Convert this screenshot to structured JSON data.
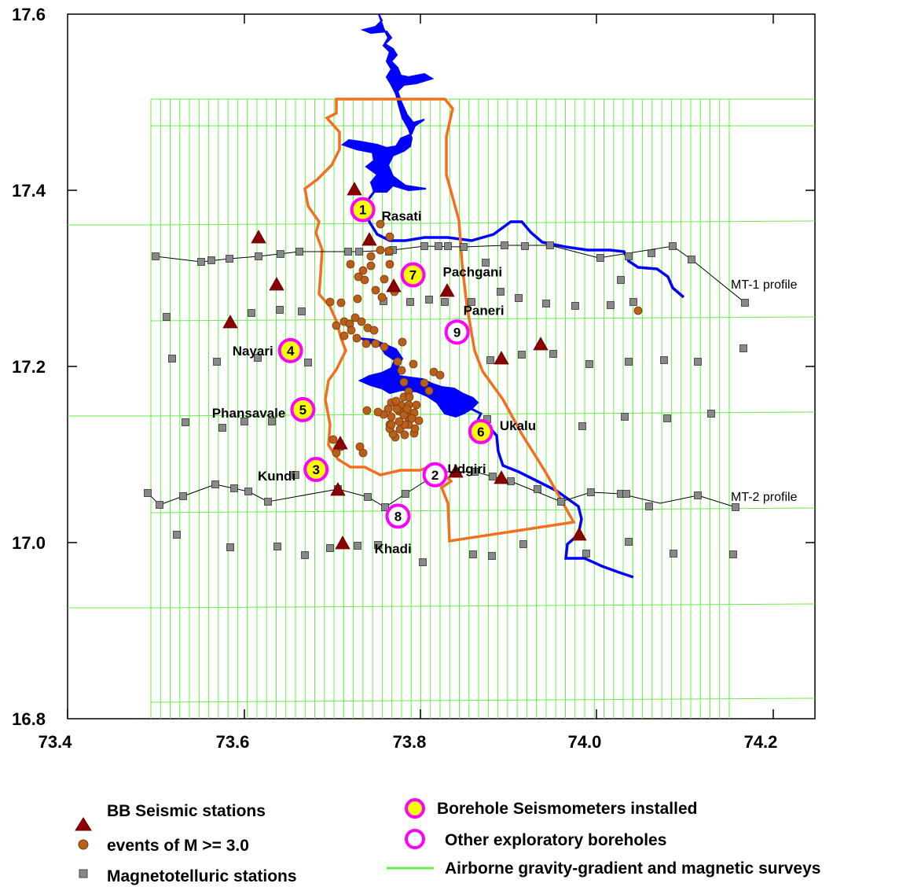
{
  "axes": {
    "x_ticks": [
      "73.4",
      "73.6",
      "73.8",
      "74.0",
      "74.2"
    ],
    "y_ticks": [
      "17.6",
      "17.4",
      "17.2",
      "17.0",
      "16.8"
    ]
  },
  "colors": {
    "survey_lines": "#66ee44",
    "reservoir": "#0000ff",
    "boundary": "#f07020",
    "seismic_station": "#8b0000",
    "event": "#b8601a",
    "mt_station": "#888888",
    "borehole_ring": "#ff00ff",
    "borehole_fill": "#ffff00"
  },
  "boreholes": [
    {
      "num": "1",
      "name": "Rasati",
      "lon": 73.735,
      "lat": 17.378,
      "installed": true
    },
    {
      "num": "2",
      "name": "Udgiri",
      "lon": 73.817,
      "lat": 17.077,
      "installed": false
    },
    {
      "num": "3",
      "name": "Kundi",
      "lon": 73.682,
      "lat": 17.083,
      "installed": true
    },
    {
      "num": "4",
      "name": "Nayari",
      "lon": 73.653,
      "lat": 17.218,
      "installed": true
    },
    {
      "num": "5",
      "name": "Phansavale",
      "lon": 73.667,
      "lat": 17.151,
      "installed": true
    },
    {
      "num": "6",
      "name": "Ukalu",
      "lon": 73.869,
      "lat": 17.126,
      "installed": true
    },
    {
      "num": "7",
      "name": "Pachgani",
      "lon": 73.792,
      "lat": 17.304,
      "installed": true
    },
    {
      "num": "8",
      "name": "Khadi",
      "lon": 73.775,
      "lat": 17.03,
      "installed": false
    },
    {
      "num": "9",
      "name": "Paneri",
      "lon": 73.842,
      "lat": 17.239,
      "installed": false
    }
  ],
  "profiles": [
    {
      "name": "MT-1 profile"
    },
    {
      "name": "MT-2 profile"
    }
  ],
  "legend": {
    "bb_seismic": "BB Seismic stations",
    "events": "events of M >= 3.0",
    "mt_stations": "Magnetotelluric stations",
    "borehole_installed": "Borehole Seismometers installed",
    "borehole_other": "Other exploratory boreholes",
    "airborne": "Airborne gravity-gradient and magnetic surveys"
  }
}
